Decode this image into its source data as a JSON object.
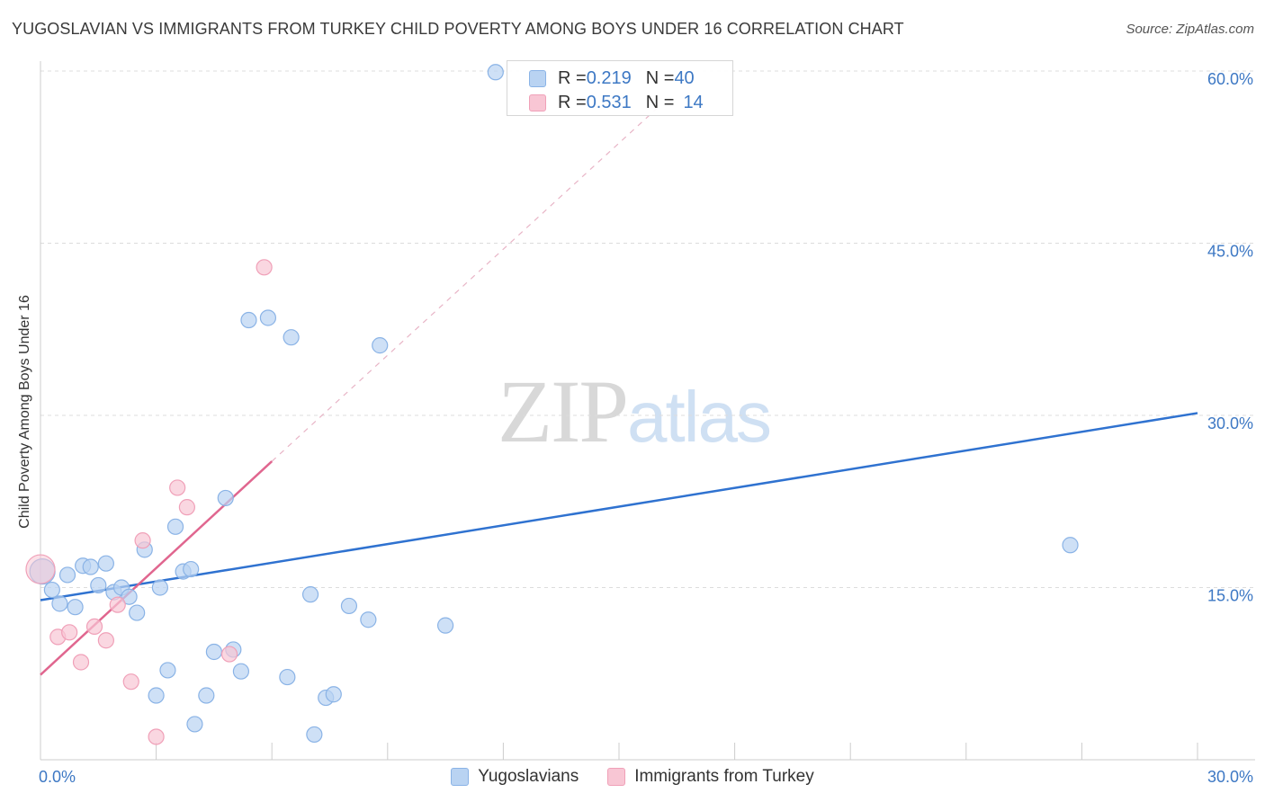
{
  "title": "YUGOSLAVIAN VS IMMIGRANTS FROM TURKEY CHILD POVERTY AMONG BOYS UNDER 16 CORRELATION CHART",
  "source": "Source: ZipAtlas.com",
  "watermark": {
    "zip": "ZIP",
    "atlas": "atlas"
  },
  "colors": {
    "blue_fill": "#b9d3f2",
    "blue_stroke": "#8ab3e6",
    "blue_line": "#2f72d0",
    "pink_fill": "#f8c6d4",
    "pink_stroke": "#f0a0b8",
    "pink_line": "#e0668f",
    "tick_text": "#3d78c4"
  },
  "legend": {
    "rows": [
      {
        "r_label": "R = ",
        "r_value": "0.219",
        "n_label": "N = ",
        "n_value": "40"
      },
      {
        "r_label": "R = ",
        "r_value": "0.531",
        "n_label": "N = ",
        "n_value": "14"
      }
    ]
  },
  "chart_data": {
    "type": "scatter",
    "title": "YUGOSLAVIAN VS IMMIGRANTS FROM TURKEY CHILD POVERTY AMONG BOYS UNDER 16 CORRELATION CHART",
    "xlabel": "",
    "ylabel": "Child Poverty Among Boys Under 16",
    "xlim": [
      0,
      30
    ],
    "ylim": [
      0,
      60
    ],
    "x_tick_labels": [
      {
        "value": 0,
        "label": "0.0%"
      },
      {
        "value": 30,
        "label": "30.0%"
      }
    ],
    "y_tick_labels": [
      {
        "value": 15,
        "label": "15.0%"
      },
      {
        "value": 30,
        "label": "30.0%"
      },
      {
        "value": 45,
        "label": "45.0%"
      },
      {
        "value": 60,
        "label": "60.0%"
      }
    ],
    "x_minor_ticks": [
      0,
      3,
      6,
      9,
      12,
      15,
      18,
      21,
      24,
      27,
      30
    ],
    "grid": true,
    "legend_position": "bottom",
    "series": [
      {
        "name": "Yugoslavians",
        "color": "#b9d3f2",
        "points": [
          [
            0.05,
            16.4
          ],
          [
            0.3,
            14.8
          ],
          [
            0.5,
            13.6
          ],
          [
            0.7,
            16.1
          ],
          [
            0.9,
            13.3
          ],
          [
            1.1,
            16.9
          ],
          [
            1.3,
            16.8
          ],
          [
            1.5,
            15.2
          ],
          [
            1.7,
            17.1
          ],
          [
            1.9,
            14.6
          ],
          [
            2.1,
            15.0
          ],
          [
            2.3,
            14.2
          ],
          [
            2.5,
            12.8
          ],
          [
            2.7,
            18.3
          ],
          [
            3.0,
            5.6
          ],
          [
            3.1,
            15.0
          ],
          [
            3.3,
            7.8
          ],
          [
            3.5,
            20.3
          ],
          [
            3.7,
            16.4
          ],
          [
            3.9,
            16.6
          ],
          [
            4.0,
            3.1
          ],
          [
            4.3,
            5.6
          ],
          [
            4.5,
            9.4
          ],
          [
            4.8,
            22.8
          ],
          [
            5.0,
            9.6
          ],
          [
            5.2,
            7.7
          ],
          [
            5.4,
            38.3
          ],
          [
            5.9,
            38.5
          ],
          [
            6.4,
            7.2
          ],
          [
            6.5,
            36.8
          ],
          [
            7.0,
            14.4
          ],
          [
            7.1,
            2.2
          ],
          [
            7.4,
            5.4
          ],
          [
            7.6,
            5.7
          ],
          [
            8.0,
            13.4
          ],
          [
            8.5,
            12.2
          ],
          [
            8.8,
            36.1
          ],
          [
            10.5,
            11.7
          ],
          [
            11.8,
            59.9
          ],
          [
            26.7,
            18.7
          ]
        ],
        "trend": {
          "x0": 0,
          "y0": 13.9,
          "x1": 30,
          "y1": 30.2
        }
      },
      {
        "name": "Immigrants from Turkey",
        "color": "#f8c6d4",
        "points": [
          [
            0.0,
            16.6
          ],
          [
            0.45,
            10.7
          ],
          [
            0.75,
            11.1
          ],
          [
            1.05,
            8.5
          ],
          [
            1.4,
            11.6
          ],
          [
            1.7,
            10.4
          ],
          [
            2.0,
            13.5
          ],
          [
            2.35,
            6.8
          ],
          [
            2.65,
            19.1
          ],
          [
            3.0,
            2.0
          ],
          [
            3.55,
            23.7
          ],
          [
            3.8,
            22.0
          ],
          [
            4.9,
            9.2
          ],
          [
            5.8,
            42.9
          ]
        ],
        "trend": {
          "x0": 0,
          "y0": 7.4,
          "x1": 6.0,
          "y1": 26.0
        },
        "trend_extension": {
          "x0": 6.0,
          "y0": 26.0,
          "x1": 16.0,
          "y1": 56.8
        }
      }
    ]
  }
}
